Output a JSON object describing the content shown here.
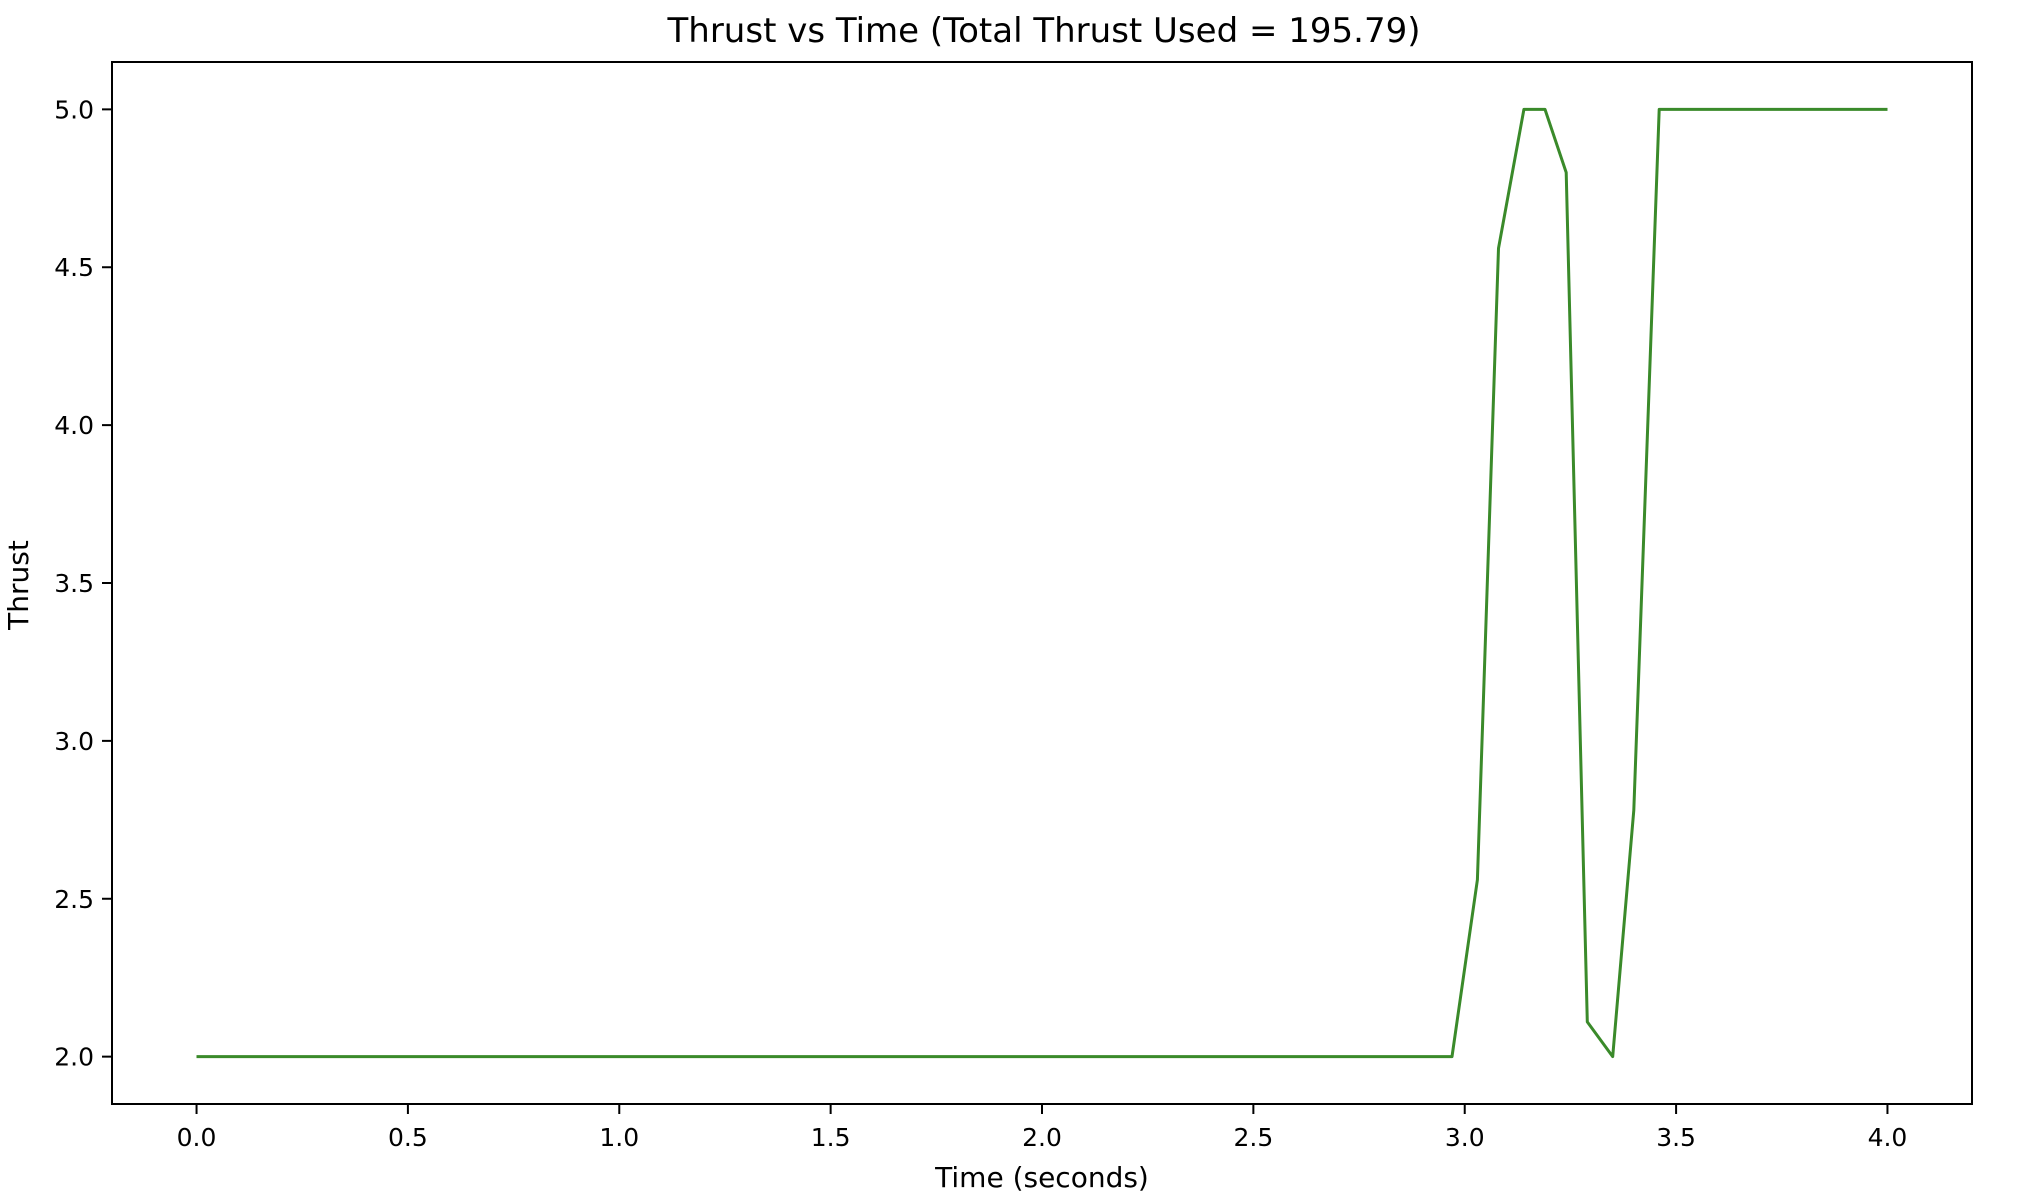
{
  "chart_data": {
    "type": "line",
    "title": "Thrust vs Time (Total Thrust Used = 195.79)",
    "xlabel": "Time (seconds)",
    "ylabel": "Thrust",
    "xlim": [
      -0.2,
      4.2
    ],
    "ylim": [
      1.85,
      5.15
    ],
    "xticks": [
      0.0,
      0.5,
      1.0,
      1.5,
      2.0,
      2.5,
      3.0,
      3.5,
      4.0
    ],
    "xtick_labels": [
      "0.0",
      "0.5",
      "1.0",
      "1.5",
      "2.0",
      "2.5",
      "3.0",
      "3.5",
      "4.0"
    ],
    "yticks": [
      2.0,
      2.5,
      3.0,
      3.5,
      4.0,
      4.5,
      5.0
    ],
    "ytick_labels": [
      "2.0",
      "2.5",
      "3.0",
      "3.5",
      "4.0",
      "4.5",
      "5.0"
    ],
    "grid": false,
    "line_color": "#3a8a2a",
    "series": [
      {
        "x": [
          0.0,
          2.97,
          3.03,
          3.08,
          3.14,
          3.19,
          3.24,
          3.29,
          3.35,
          3.4,
          3.46,
          4.0
        ],
        "y": [
          2.0,
          2.0,
          2.56,
          4.56,
          5.0,
          5.0,
          4.8,
          2.11,
          2.0,
          2.78,
          5.0,
          5.0
        ]
      }
    ]
  }
}
